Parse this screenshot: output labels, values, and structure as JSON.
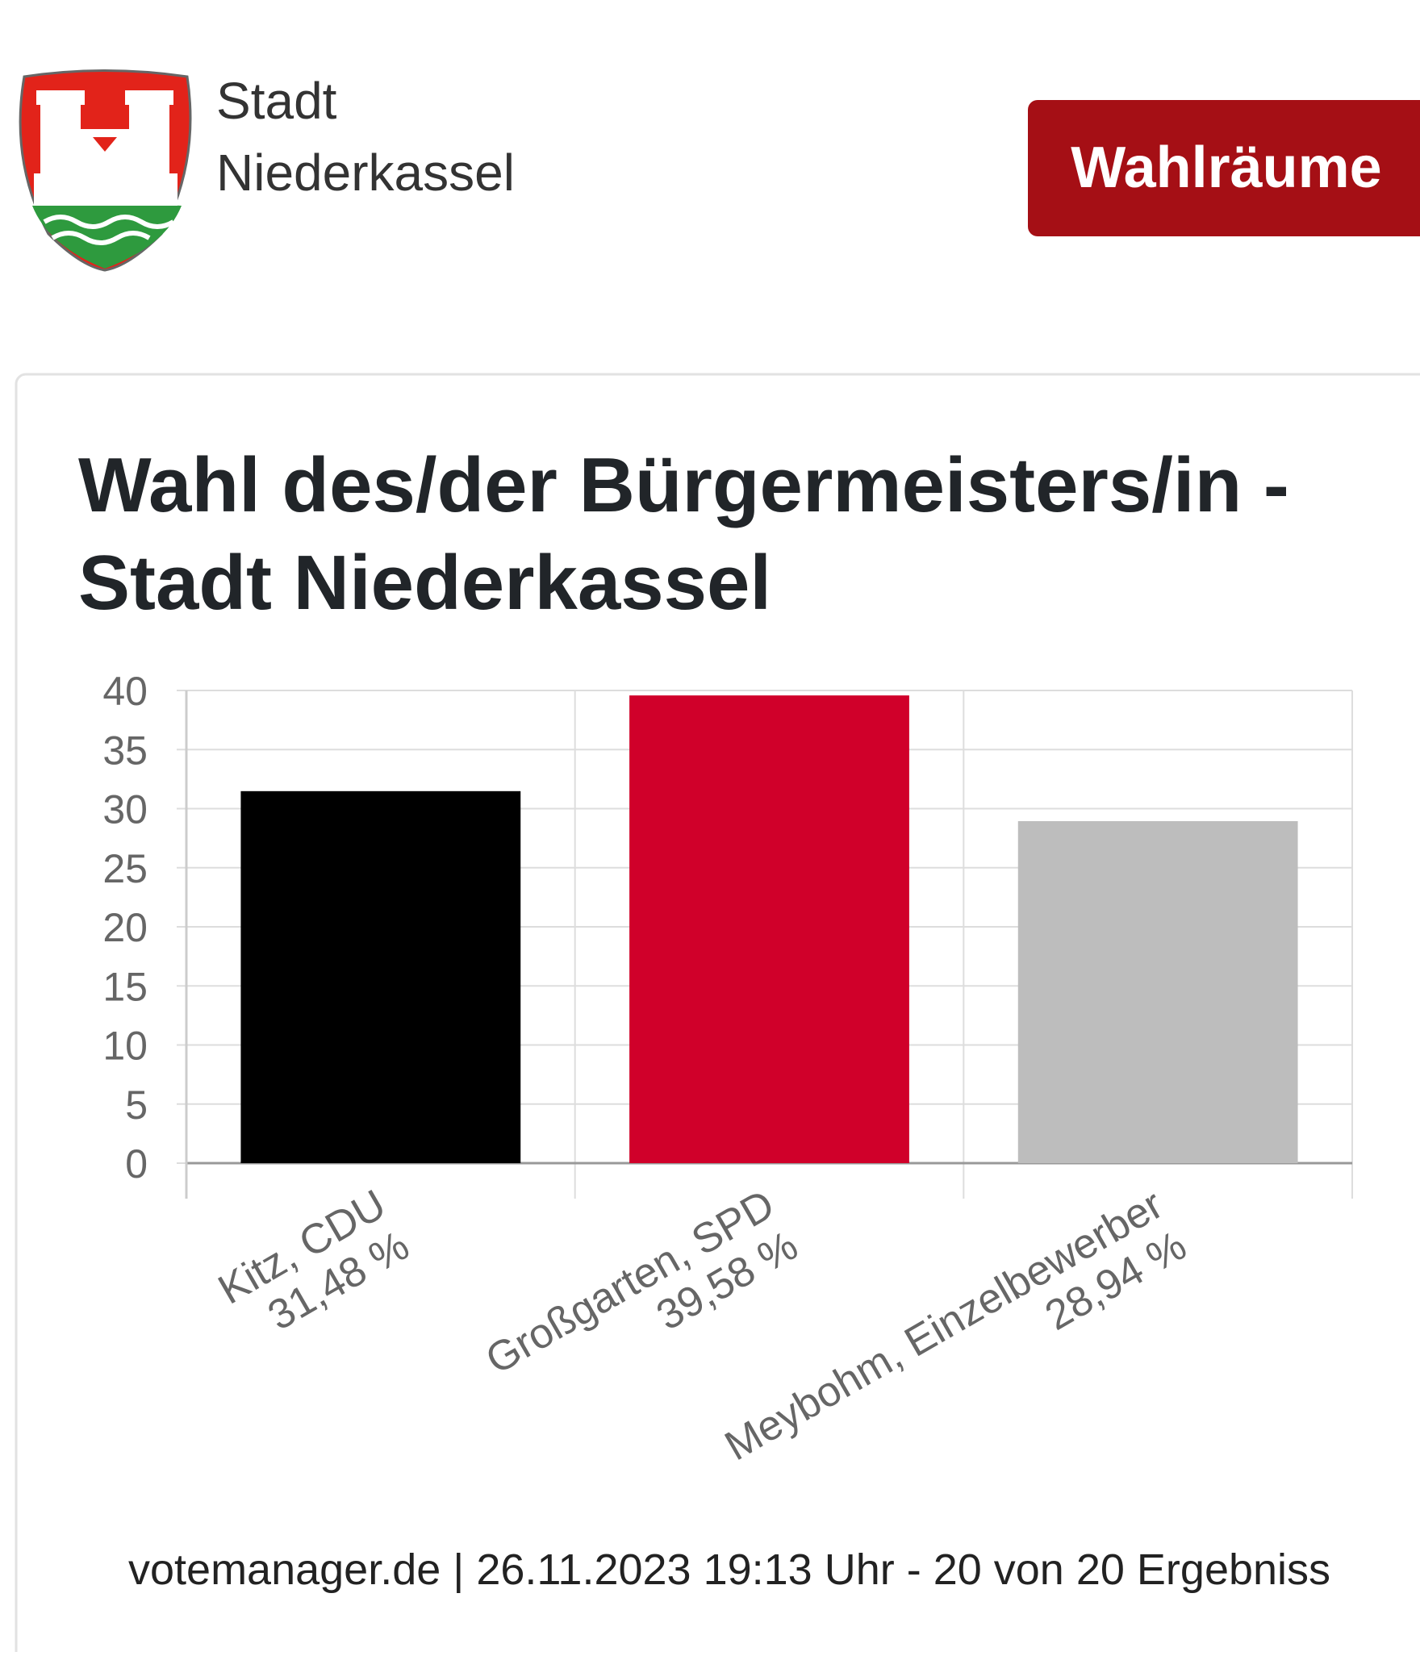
{
  "header": {
    "brand_line1": "Stadt",
    "brand_line2": "Niederkassel",
    "button": "Wahlräume"
  },
  "chart_data": {
    "type": "bar",
    "title_line1": "Wahl des/der Bürgermeisters/in -",
    "title_line2": "Stadt Niederkassel",
    "categories": [
      "Kitz, CDU",
      "Großgarten, SPD",
      "Meybohm, Einzelbewerber"
    ],
    "values": [
      31.48,
      39.58,
      28.94
    ],
    "value_labels": [
      "31,48 %",
      "39,58 %",
      "28,94 %"
    ],
    "colors": [
      "#000000",
      "#d0002a",
      "#bdbdbd"
    ],
    "ylim": [
      0,
      40
    ],
    "yticks": [
      0,
      5,
      10,
      15,
      20,
      25,
      30,
      35,
      40
    ],
    "grid": true
  },
  "footer": "votemanager.de | 26.11.2023 19:13 Uhr - 20 von 20 Ergebniss"
}
